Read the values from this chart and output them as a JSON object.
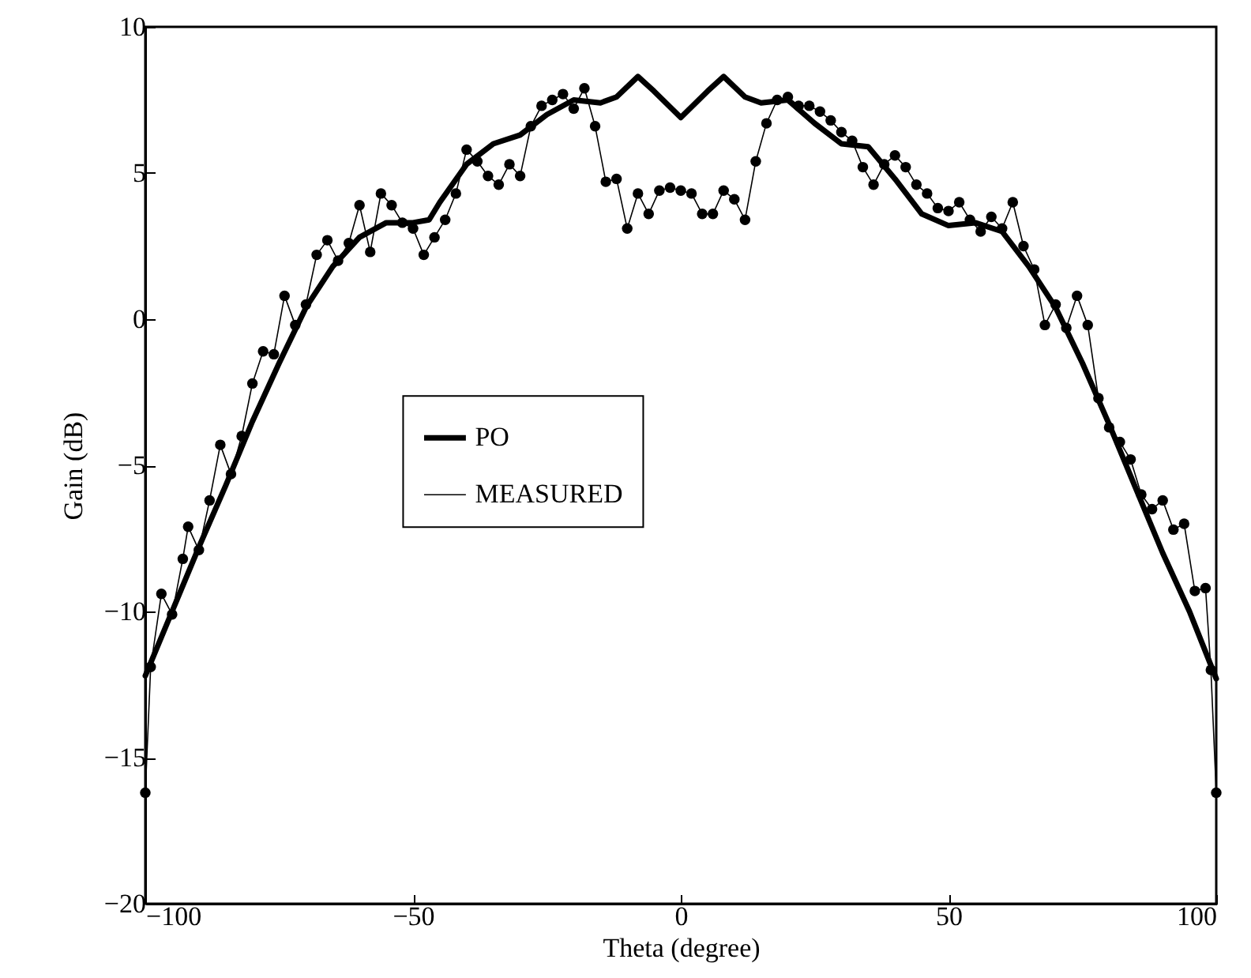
{
  "chart_data": {
    "type": "line",
    "xlabel": "Theta (degree)",
    "ylabel": "Gain (dB)",
    "xlim": [
      -100,
      100
    ],
    "ylim": [
      -20,
      10
    ],
    "xticks": [
      -100,
      -50,
      0,
      50,
      100
    ],
    "yticks": [
      -20,
      -15,
      -10,
      -5,
      0,
      5,
      10
    ],
    "grid": false,
    "legend": "center",
    "line_style": "solid",
    "series": [
      {
        "name": "PO",
        "color": "#000000",
        "marker": "none",
        "x": [
          -100,
          -95,
          -90,
          -85,
          -80,
          -75,
          -70,
          -65,
          -60,
          -55,
          -50,
          -47,
          -45,
          -40,
          -35,
          -30,
          -25,
          -20,
          -15,
          -12,
          -8,
          -5,
          0,
          5,
          8,
          12,
          15,
          20,
          25,
          30,
          35,
          40,
          45,
          50,
          55,
          60,
          65,
          70,
          75,
          80,
          85,
          90,
          95,
          100
        ],
        "values": [
          -12.2,
          -10,
          -7.8,
          -5.7,
          -3.5,
          -1.5,
          0.4,
          1.8,
          2.8,
          3.3,
          3.3,
          3.4,
          4.0,
          5.3,
          6.0,
          6.3,
          7.0,
          7.5,
          7.4,
          7.6,
          8.3,
          7.8,
          6.9,
          7.8,
          8.3,
          7.6,
          7.4,
          7.5,
          6.7,
          6.0,
          5.9,
          4.8,
          3.6,
          3.2,
          3.3,
          3.0,
          1.8,
          0.4,
          -1.5,
          -3.6,
          -5.8,
          -8,
          -10,
          -12.3
        ]
      },
      {
        "name": "MEASURED",
        "color": "#000000",
        "marker": "circle",
        "x": [
          -100,
          -99,
          -97,
          -95,
          -93,
          -92,
          -90,
          -88,
          -86,
          -84,
          -82,
          -80,
          -78,
          -76,
          -74,
          -72,
          -70,
          -68,
          -66,
          -64,
          -62,
          -60,
          -58,
          -56,
          -54,
          -52,
          -50,
          -48,
          -46,
          -44,
          -42,
          -40,
          -38,
          -36,
          -34,
          -32,
          -30,
          -28,
          -26,
          -24,
          -22,
          -20,
          -18,
          -16,
          -14,
          -12,
          -10,
          -8,
          -6,
          -4,
          -2,
          0,
          2,
          4,
          6,
          8,
          10,
          12,
          14,
          16,
          18,
          20,
          22,
          24,
          26,
          28,
          30,
          32,
          34,
          36,
          38,
          40,
          42,
          44,
          46,
          48,
          50,
          52,
          54,
          56,
          58,
          60,
          62,
          64,
          66,
          68,
          70,
          72,
          74,
          76,
          78,
          80,
          82,
          84,
          86,
          88,
          90,
          92,
          94,
          96,
          98,
          99,
          100
        ],
        "values": [
          -16.2,
          -11.9,
          -9.4,
          -10.1,
          -8.2,
          -7.1,
          -7.9,
          -6.2,
          -4.3,
          -5.3,
          -4.0,
          -2.2,
          -1.1,
          -1.2,
          0.8,
          -0.2,
          0.5,
          2.2,
          2.7,
          2.0,
          2.6,
          3.9,
          2.3,
          4.3,
          3.9,
          3.3,
          3.1,
          2.2,
          2.8,
          3.4,
          4.3,
          5.8,
          5.4,
          4.9,
          4.6,
          5.3,
          4.9,
          6.6,
          7.3,
          7.5,
          7.7,
          7.2,
          7.9,
          6.6,
          4.7,
          4.8,
          3.1,
          4.3,
          3.6,
          4.4,
          4.5,
          4.4,
          4.3,
          3.6,
          3.6,
          4.4,
          4.1,
          3.4,
          5.4,
          6.7,
          7.5,
          7.6,
          7.3,
          7.3,
          7.1,
          6.8,
          6.4,
          6.1,
          5.2,
          4.6,
          5.3,
          5.6,
          5.2,
          4.6,
          4.3,
          3.8,
          3.7,
          4.0,
          3.4,
          3.0,
          3.5,
          3.1,
          4.0,
          2.5,
          1.7,
          -0.2,
          0.5,
          -0.3,
          0.8,
          -0.2,
          -2.7,
          -3.7,
          -4.2,
          -4.8,
          -6.0,
          -6.5,
          -6.2,
          -7.2,
          -7.0,
          -9.3,
          -9.2,
          -12,
          -16.2
        ]
      }
    ]
  }
}
